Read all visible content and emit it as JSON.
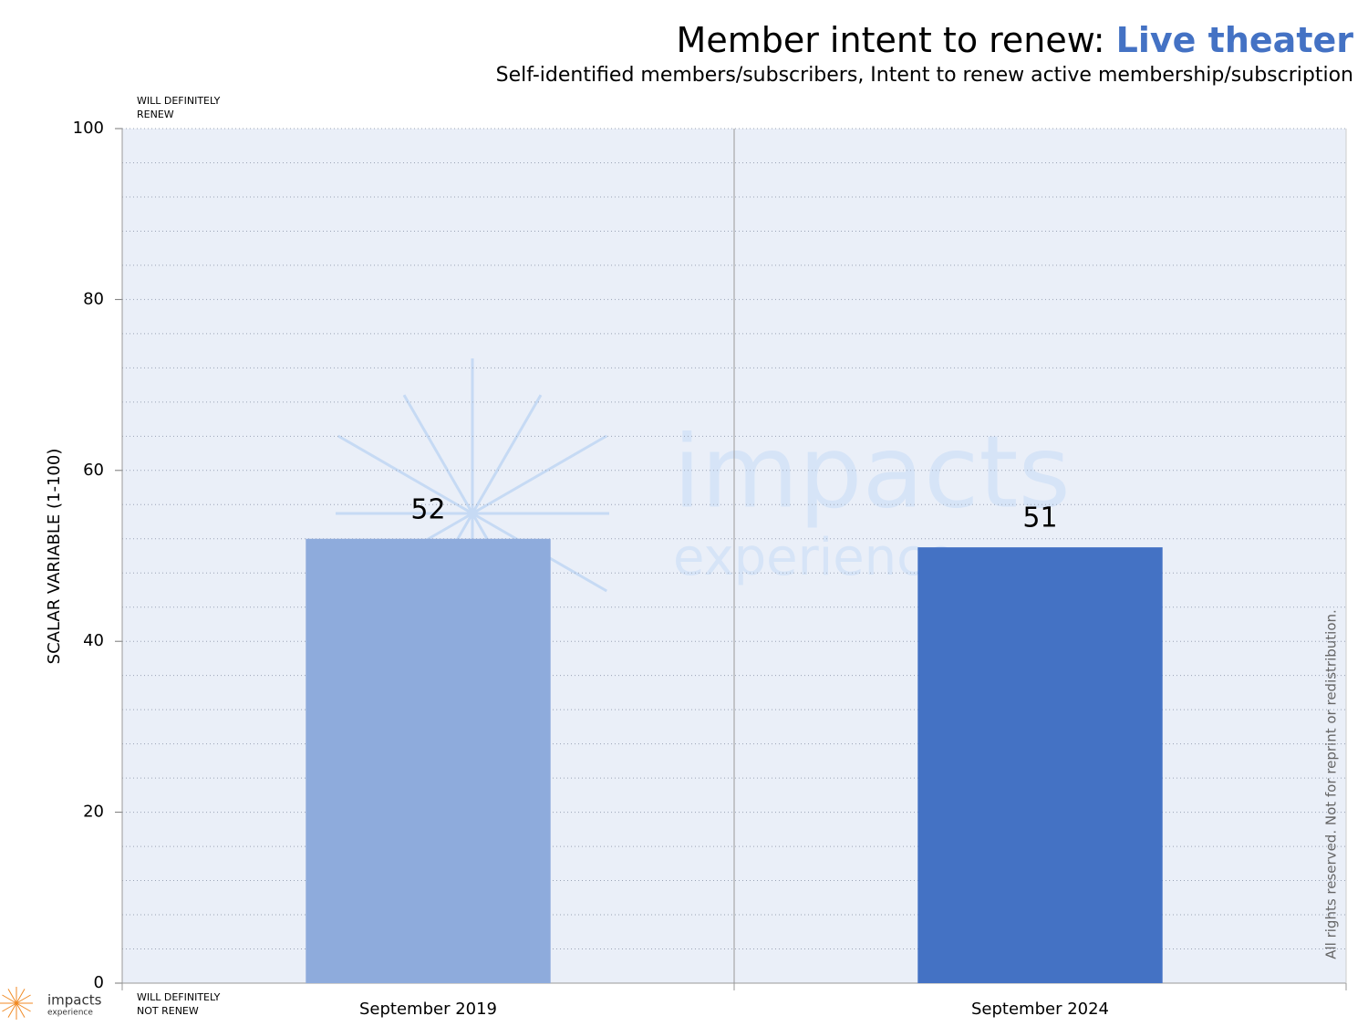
{
  "chart_data": {
    "type": "bar",
    "title": "Member intent to renew:",
    "title_highlight": "Live theater",
    "subtitle": "Self-identified members/subscribers, Intent to renew active membership/subscription",
    "y_label": "SCALAR VARIABLE (1-100)",
    "top_annotation": [
      "WILL DEFINITELY",
      "RENEW"
    ],
    "bottom_annotation": [
      "WILL DEFINITELY",
      "NOT RENEW"
    ],
    "side_note": "All rights reserved. Not for reprint or redistribution.",
    "watermark": [
      "impacts",
      "experience"
    ],
    "logo": [
      "impacts",
      "experience"
    ],
    "categories": [
      "September 2019",
      "September 2024"
    ],
    "values": [
      52,
      51
    ],
    "colors": [
      "#8eabdc",
      "#4472c4"
    ],
    "ylim": [
      0,
      100
    ],
    "yticks": [
      0,
      20,
      40,
      60,
      80,
      100
    ],
    "minor_yticks": [
      4,
      8,
      12,
      16,
      24,
      28,
      32,
      36,
      44,
      48,
      52,
      56,
      64,
      68,
      72,
      76,
      84,
      88,
      92,
      96
    ],
    "grid": true
  }
}
